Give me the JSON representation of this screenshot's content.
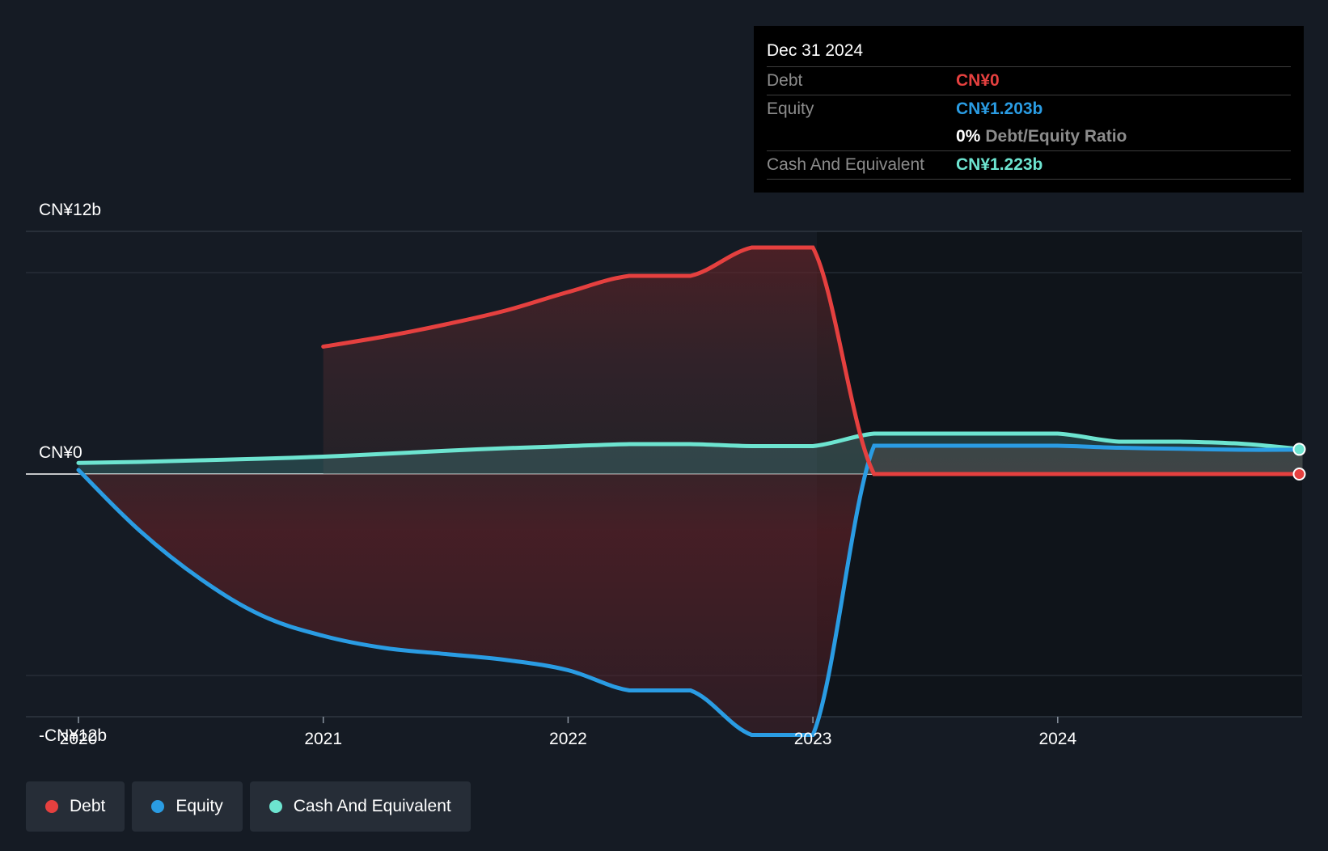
{
  "tooltip": {
    "date": "Dec 31 2024",
    "debt_label": "Debt",
    "debt_value": "CN¥0",
    "equity_label": "Equity",
    "equity_value": "CN¥1.203b",
    "ratio_pct": "0%",
    "ratio_label": "Debt/Equity Ratio",
    "cash_label": "Cash And Equivalent",
    "cash_value": "CN¥1.223b"
  },
  "legend": [
    {
      "label": "Debt",
      "color": "#e5403f"
    },
    {
      "label": "Equity",
      "color": "#2a9ce3"
    },
    {
      "label": "Cash And Equivalent",
      "color": "#6de4d0"
    }
  ],
  "chart_data": {
    "type": "line",
    "y_tick_labels": [
      "CN¥12b",
      "CN¥0",
      "-CN¥12b"
    ],
    "x_tick_labels": [
      "2020",
      "2021",
      "2022",
      "2023",
      "2024"
    ],
    "ylim": [
      -12,
      12
    ],
    "xlim": [
      2019.79,
      2024.99
    ],
    "grid": true,
    "legend_position": "bottom-left",
    "colors": {
      "debt": "#e5403f",
      "equity": "#2a9ce3",
      "cash": "#6de4d0"
    },
    "series": [
      {
        "name": "Debt",
        "points": [
          [
            2021.0,
            6.3
          ],
          [
            2021.25,
            6.8
          ],
          [
            2021.5,
            7.4
          ],
          [
            2021.75,
            8.1
          ],
          [
            2022.0,
            9.0
          ],
          [
            2022.25,
            9.8
          ],
          [
            2022.5,
            9.8
          ],
          [
            2022.75,
            11.2
          ],
          [
            2023.0,
            11.2
          ],
          [
            2023.25,
            0.0
          ],
          [
            2023.5,
            0.0
          ],
          [
            2023.75,
            0.0
          ],
          [
            2024.0,
            0.0
          ],
          [
            2024.25,
            0.0
          ],
          [
            2024.5,
            0.0
          ],
          [
            2024.75,
            0.0
          ],
          [
            2025.0,
            0.0
          ]
        ]
      },
      {
        "name": "Equity",
        "points": [
          [
            2020.0,
            0.2
          ],
          [
            2020.25,
            -2.8
          ],
          [
            2020.5,
            -5.2
          ],
          [
            2020.75,
            -7.0
          ],
          [
            2021.0,
            -8.0
          ],
          [
            2021.25,
            -8.6
          ],
          [
            2021.5,
            -8.9
          ],
          [
            2021.75,
            -9.2
          ],
          [
            2022.0,
            -9.7
          ],
          [
            2022.25,
            -10.7
          ],
          [
            2022.5,
            -10.7
          ],
          [
            2022.75,
            -12.9
          ],
          [
            2023.0,
            -12.9
          ],
          [
            2023.25,
            1.4
          ],
          [
            2023.5,
            1.4
          ],
          [
            2023.75,
            1.4
          ],
          [
            2024.0,
            1.4
          ],
          [
            2024.25,
            1.3
          ],
          [
            2024.5,
            1.25
          ],
          [
            2024.75,
            1.2
          ],
          [
            2025.0,
            1.203
          ]
        ]
      },
      {
        "name": "Cash And Equivalent",
        "points": [
          [
            2020.0,
            0.55
          ],
          [
            2020.25,
            0.6
          ],
          [
            2020.5,
            0.68
          ],
          [
            2020.75,
            0.76
          ],
          [
            2021.0,
            0.86
          ],
          [
            2021.25,
            1.0
          ],
          [
            2021.5,
            1.15
          ],
          [
            2021.75,
            1.28
          ],
          [
            2022.0,
            1.38
          ],
          [
            2022.25,
            1.48
          ],
          [
            2022.5,
            1.48
          ],
          [
            2022.75,
            1.38
          ],
          [
            2023.0,
            1.38
          ],
          [
            2023.25,
            2.0
          ],
          [
            2023.5,
            2.0
          ],
          [
            2023.75,
            2.0
          ],
          [
            2024.0,
            2.0
          ],
          [
            2024.25,
            1.6
          ],
          [
            2024.5,
            1.6
          ],
          [
            2024.75,
            1.5
          ],
          [
            2025.0,
            1.223
          ]
        ]
      }
    ]
  }
}
